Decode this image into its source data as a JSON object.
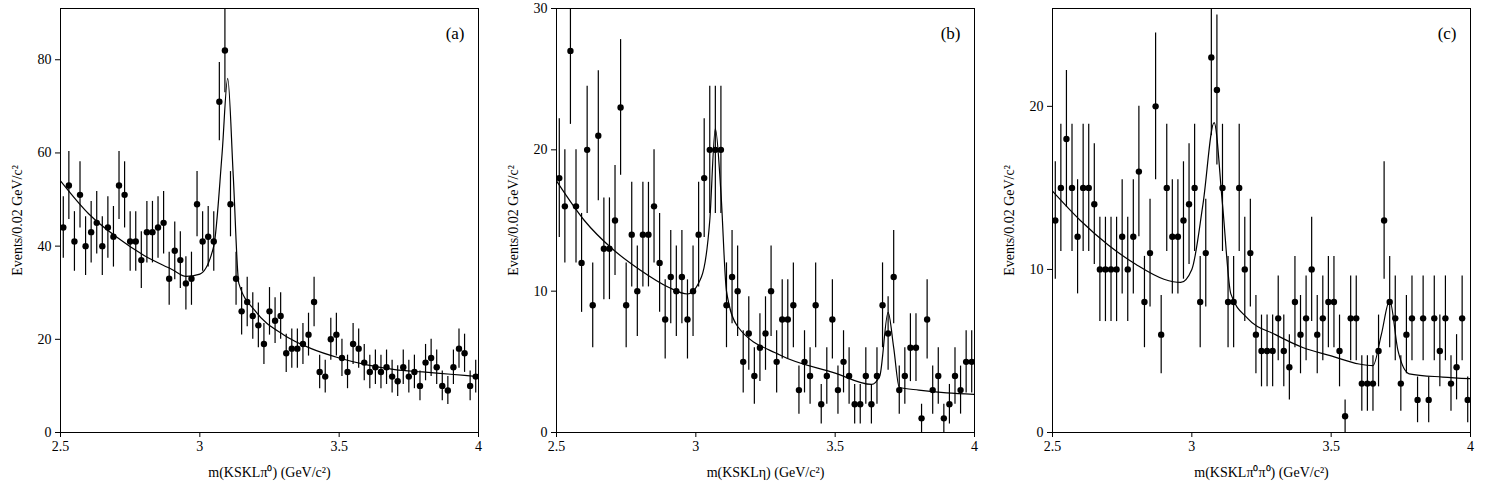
{
  "chart_data": [
    {
      "type": "scatter",
      "title": "(a)",
      "x_label": "m(KSKLπ⁰) (GeV/c²)",
      "y_label": "Events/0.02 GeV/c²",
      "xlim": [
        2.5,
        4.0
      ],
      "xticks": [
        2.5,
        3,
        3.5,
        4
      ],
      "ylim": [
        0,
        91
      ],
      "yticks": [
        0,
        20,
        40,
        60,
        80
      ],
      "series": [
        {
          "type": "scatter",
          "color": "#000000",
          "marker": "circle",
          "x": [
            2.51,
            2.53,
            2.55,
            2.57,
            2.59,
            2.61,
            2.63,
            2.65,
            2.67,
            2.69,
            2.71,
            2.73,
            2.75,
            2.77,
            2.79,
            2.81,
            2.83,
            2.85,
            2.87,
            2.89,
            2.91,
            2.93,
            2.95,
            2.97,
            2.99,
            3.01,
            3.03,
            3.05,
            3.07,
            3.09,
            3.11,
            3.13,
            3.15,
            3.17,
            3.19,
            3.21,
            3.23,
            3.25,
            3.27,
            3.29,
            3.31,
            3.33,
            3.35,
            3.37,
            3.39,
            3.41,
            3.43,
            3.45,
            3.47,
            3.49,
            3.51,
            3.53,
            3.55,
            3.57,
            3.59,
            3.61,
            3.63,
            3.65,
            3.67,
            3.69,
            3.71,
            3.73,
            3.75,
            3.77,
            3.79,
            3.81,
            3.83,
            3.85,
            3.87,
            3.89,
            3.91,
            3.93,
            3.95,
            3.97,
            3.99
          ],
          "values": [
            44,
            53,
            41,
            51,
            40,
            43,
            45,
            40,
            44,
            42,
            53,
            51,
            41,
            41,
            37,
            43,
            43,
            44,
            45,
            33,
            39,
            37,
            32,
            33,
            49,
            41,
            42,
            41,
            71,
            82,
            49,
            33,
            26,
            28,
            25,
            23,
            19,
            26,
            24,
            25,
            17,
            18,
            18,
            19,
            21,
            28,
            13,
            12,
            20,
            21,
            16,
            13,
            19,
            18,
            15,
            13,
            14,
            13,
            14,
            12,
            11,
            14,
            12,
            13,
            10,
            15,
            16,
            14,
            10,
            9,
            14,
            18,
            17,
            10,
            12
          ],
          "errors": [
            6.6,
            7.3,
            6.4,
            7.1,
            6.3,
            6.6,
            6.7,
            6.3,
            6.6,
            6.5,
            7.3,
            7.1,
            6.4,
            6.4,
            6.1,
            6.6,
            6.6,
            6.6,
            6.7,
            5.7,
            6.2,
            6.1,
            5.7,
            5.7,
            7,
            6.4,
            6.5,
            6.4,
            8.4,
            9.1,
            7,
            5.7,
            5.1,
            5.3,
            5,
            4.8,
            4.4,
            5.1,
            4.9,
            5,
            4.1,
            4.2,
            4.2,
            4.4,
            4.6,
            5.3,
            3.6,
            3.5,
            4.5,
            4.6,
            4,
            3.6,
            4.4,
            4.2,
            3.9,
            3.6,
            3.7,
            3.6,
            3.7,
            3.5,
            3.3,
            3.7,
            3.5,
            3.6,
            3.2,
            3.9,
            4,
            3.7,
            3.2,
            3,
            3.7,
            4.2,
            4.1,
            3.2,
            3.5
          ]
        },
        {
          "type": "line",
          "color": "#000000",
          "x": [
            2.5,
            2.6,
            2.7,
            2.8,
            2.9,
            2.95,
            3.0,
            3.05,
            3.08,
            3.1,
            3.12,
            3.14,
            3.2,
            3.3,
            3.4,
            3.5,
            3.6,
            3.7,
            3.8,
            3.9,
            4.0
          ],
          "values": [
            54,
            47,
            42,
            38,
            35,
            33.5,
            34,
            40,
            60,
            76,
            55,
            32,
            26,
            21,
            18,
            16,
            14.5,
            13.5,
            13,
            12.5,
            12
          ]
        }
      ]
    },
    {
      "type": "scatter",
      "title": "(b)",
      "x_label": "m(KSKLη) (GeV/c²)",
      "y_label": "Events/0.02 GeV/c²",
      "xlim": [
        2.5,
        4.0
      ],
      "xticks": [
        2.5,
        3,
        3.5,
        4
      ],
      "ylim": [
        0,
        30
      ],
      "yticks": [
        0,
        10,
        20,
        30
      ],
      "series": [
        {
          "type": "scatter",
          "color": "#000000",
          "marker": "circle",
          "x": [
            2.51,
            2.53,
            2.55,
            2.57,
            2.59,
            2.61,
            2.63,
            2.65,
            2.67,
            2.69,
            2.71,
            2.73,
            2.75,
            2.77,
            2.79,
            2.81,
            2.83,
            2.85,
            2.87,
            2.89,
            2.91,
            2.93,
            2.95,
            2.97,
            2.99,
            3.01,
            3.03,
            3.05,
            3.07,
            3.09,
            3.11,
            3.13,
            3.15,
            3.17,
            3.19,
            3.21,
            3.23,
            3.25,
            3.27,
            3.29,
            3.31,
            3.33,
            3.35,
            3.37,
            3.39,
            3.41,
            3.43,
            3.45,
            3.47,
            3.49,
            3.51,
            3.53,
            3.55,
            3.57,
            3.59,
            3.61,
            3.63,
            3.65,
            3.67,
            3.69,
            3.71,
            3.73,
            3.75,
            3.77,
            3.79,
            3.81,
            3.83,
            3.85,
            3.87,
            3.89,
            3.91,
            3.93,
            3.95,
            3.97,
            3.99
          ],
          "values": [
            18,
            16,
            27,
            16,
            12,
            20,
            9,
            21,
            13,
            13,
            15,
            23,
            9,
            14,
            10,
            14,
            14,
            16,
            12,
            8,
            11,
            10,
            11,
            8,
            10,
            14,
            18,
            20,
            20,
            20,
            9,
            11,
            10,
            5,
            7,
            4,
            6,
            7,
            10,
            5,
            8,
            8,
            9,
            3,
            5,
            4,
            9,
            2,
            4,
            8,
            3,
            5,
            4,
            2,
            2,
            4,
            2,
            4,
            9,
            7,
            11,
            3,
            4,
            6,
            6,
            1,
            8,
            3,
            4,
            1,
            2,
            4,
            3,
            5,
            5
          ],
          "errors": [
            4.2,
            4,
            5.2,
            4,
            3.5,
            4.5,
            3,
            4.6,
            3.6,
            3.6,
            3.9,
            4.8,
            3,
            3.7,
            3.2,
            3.7,
            3.7,
            4,
            3.5,
            2.8,
            3.3,
            3.2,
            3.3,
            2.8,
            3.2,
            3.7,
            4.2,
            4.5,
            4.5,
            4.5,
            3,
            3.3,
            3.2,
            2.2,
            2.6,
            2,
            2.4,
            2.6,
            3.2,
            2.2,
            2.8,
            2.8,
            3,
            1.7,
            2.2,
            2,
            3,
            1.4,
            2,
            2.8,
            1.7,
            2.2,
            2,
            1.4,
            1.4,
            2,
            1.4,
            2,
            3,
            2.6,
            3.3,
            1.7,
            2,
            2.4,
            2.4,
            1,
            2.8,
            1.7,
            2,
            1,
            1.4,
            2,
            1.7,
            2.2,
            2.2
          ]
        },
        {
          "type": "line",
          "color": "#000000",
          "x": [
            2.5,
            2.6,
            2.7,
            2.8,
            2.9,
            2.97,
            3.02,
            3.05,
            3.07,
            3.09,
            3.11,
            3.15,
            3.3,
            3.5,
            3.63,
            3.66,
            3.69,
            3.71,
            3.73,
            3.8,
            3.9,
            4.0
          ],
          "values": [
            17.8,
            15,
            13,
            11.5,
            10.3,
            9.8,
            11,
            15,
            21.5,
            17,
            10,
            7.5,
            5.5,
            4.2,
            3.4,
            4,
            8.5,
            6,
            3.2,
            3,
            2.8,
            2.7
          ]
        }
      ]
    },
    {
      "type": "scatter",
      "title": "(c)",
      "x_label": "m(KSKLπ⁰π⁰) (GeV/c²)",
      "y_label": "Events/0.02 GeV/c²",
      "xlim": [
        2.5,
        4.0
      ],
      "xticks": [
        2.5,
        3,
        3.5,
        4
      ],
      "ylim": [
        0,
        26
      ],
      "yticks": [
        0,
        10,
        20
      ],
      "series": [
        {
          "type": "scatter",
          "color": "#000000",
          "marker": "circle",
          "x": [
            2.51,
            2.53,
            2.55,
            2.57,
            2.59,
            2.61,
            2.63,
            2.65,
            2.67,
            2.69,
            2.71,
            2.73,
            2.75,
            2.77,
            2.79,
            2.81,
            2.83,
            2.85,
            2.87,
            2.89,
            2.91,
            2.93,
            2.95,
            2.97,
            2.99,
            3.01,
            3.03,
            3.05,
            3.07,
            3.09,
            3.11,
            3.13,
            3.15,
            3.17,
            3.19,
            3.21,
            3.23,
            3.25,
            3.27,
            3.29,
            3.31,
            3.33,
            3.35,
            3.37,
            3.39,
            3.41,
            3.43,
            3.45,
            3.47,
            3.49,
            3.51,
            3.53,
            3.55,
            3.57,
            3.59,
            3.61,
            3.63,
            3.65,
            3.67,
            3.69,
            3.71,
            3.73,
            3.75,
            3.77,
            3.79,
            3.81,
            3.83,
            3.85,
            3.87,
            3.89,
            3.91,
            3.93,
            3.95,
            3.97,
            3.99
          ],
          "values": [
            13,
            15,
            18,
            15,
            12,
            15,
            15,
            14,
            10,
            10,
            10,
            10,
            12,
            10,
            12,
            16,
            8,
            11,
            20,
            6,
            15,
            12,
            12,
            13,
            14,
            15,
            8,
            11,
            23,
            21,
            15,
            8,
            8,
            15,
            10,
            11,
            6,
            5,
            5,
            5,
            7,
            5,
            4,
            8,
            6,
            7,
            10,
            6,
            7,
            8,
            8,
            5,
            1,
            7,
            7,
            3,
            3,
            3,
            5,
            13,
            8,
            7,
            3,
            6,
            7,
            2,
            7,
            2,
            7,
            5,
            7,
            3,
            4,
            7,
            2
          ],
          "errors": [
            3.6,
            3.9,
            4.2,
            3.9,
            3.5,
            3.9,
            3.9,
            3.7,
            3.2,
            3.2,
            3.2,
            3.2,
            3.5,
            3.2,
            3.5,
            4,
            2.8,
            3.3,
            4.5,
            2.4,
            3.9,
            3.5,
            3.5,
            3.6,
            3.7,
            3.9,
            2.8,
            3.3,
            4.8,
            4.6,
            3.9,
            2.8,
            2.8,
            3.9,
            3.2,
            3.3,
            2.4,
            2.2,
            2.2,
            2.2,
            2.6,
            2.2,
            2,
            2.8,
            2.4,
            2.6,
            3.2,
            2.4,
            2.6,
            2.8,
            2.8,
            2.2,
            1,
            2.6,
            2.6,
            1.7,
            1.7,
            1.7,
            2.2,
            3.6,
            2.8,
            2.6,
            1.7,
            2.4,
            2.6,
            1.4,
            2.6,
            1.4,
            2.6,
            2.2,
            2.6,
            1.7,
            2,
            2.6,
            1.4
          ]
        },
        {
          "type": "line",
          "color": "#000000",
          "x": [
            2.5,
            2.6,
            2.7,
            2.8,
            2.9,
            2.96,
            3.0,
            3.04,
            3.08,
            3.11,
            3.14,
            3.2,
            3.3,
            3.4,
            3.5,
            3.6,
            3.65,
            3.68,
            3.71,
            3.74,
            3.78,
            3.9,
            4.0
          ],
          "values": [
            14.8,
            13,
            11.5,
            10.3,
            9.4,
            9.2,
            10,
            14,
            19,
            14,
            8.5,
            7,
            6,
            5.2,
            4.7,
            4.2,
            4.1,
            6,
            8.1,
            5,
            3.6,
            3.4,
            3.3
          ]
        }
      ]
    }
  ]
}
